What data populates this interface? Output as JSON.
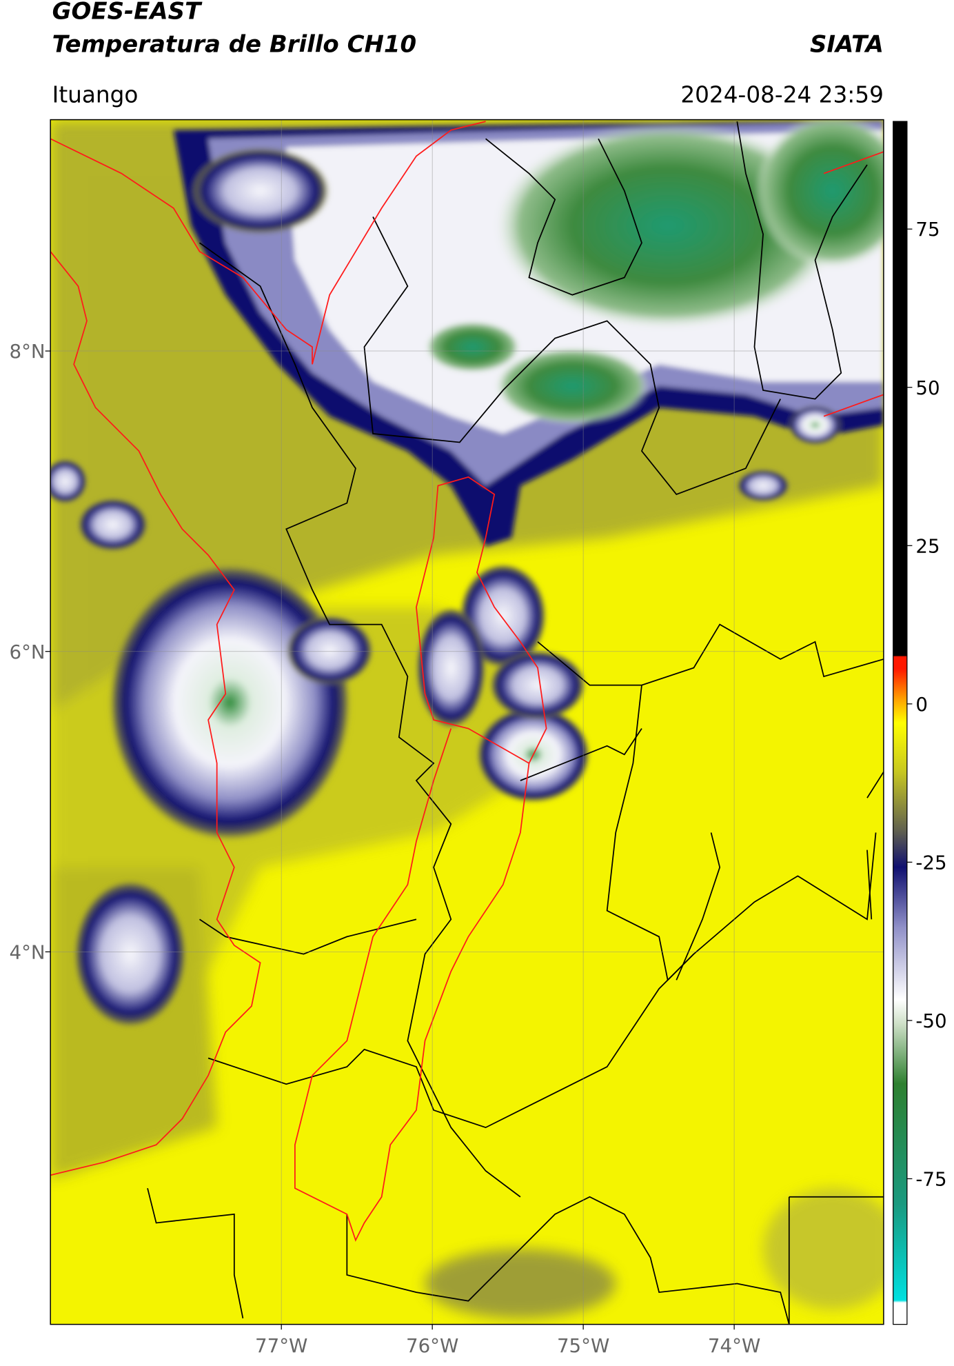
{
  "header": {
    "title": "GOES-EAST",
    "subtitle": "Temperatura de Brillo CH10",
    "brand": "SIATA",
    "location": "Ituango",
    "datetime": "2024-08-24 23:59"
  },
  "map": {
    "xlim": [
      -78.53,
      -73.01
    ],
    "ylim": [
      1.52,
      9.54
    ],
    "xticks": [
      {
        "value": -77,
        "label": "77°W"
      },
      {
        "value": -76,
        "label": "76°W"
      },
      {
        "value": -75,
        "label": "75°W"
      },
      {
        "value": -74,
        "label": "74°W"
      }
    ],
    "yticks": [
      {
        "value": 8,
        "label": "8°N"
      },
      {
        "value": 6,
        "label": "6°N"
      },
      {
        "value": 4,
        "label": "4°N"
      }
    ]
  },
  "colorbar": {
    "lim": [
      -98,
      92
    ],
    "ticks": [
      75,
      50,
      25,
      0,
      -25,
      -50,
      -75
    ]
  }
}
